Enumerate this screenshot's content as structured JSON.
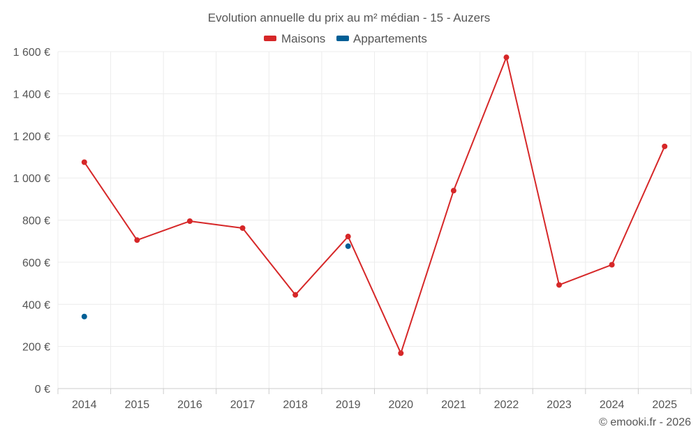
{
  "chart_data": {
    "type": "line",
    "title": "Evolution annuelle du prix au m² médian - 15 - Auzers",
    "xlabel": "",
    "ylabel": "",
    "categories": [
      "2014",
      "2015",
      "2016",
      "2017",
      "2018",
      "2019",
      "2020",
      "2021",
      "2022",
      "2023",
      "2024",
      "2025"
    ],
    "ylim": [
      0,
      1600
    ],
    "yticks": [
      0,
      200,
      400,
      600,
      800,
      1000,
      1200,
      1400,
      1600
    ],
    "ytick_labels": [
      "0 €",
      "200 €",
      "400 €",
      "600 €",
      "800 €",
      "1 000 €",
      "1 200 €",
      "1 400 €",
      "1 600 €"
    ],
    "grid": true,
    "legend_position": "top-center",
    "series": [
      {
        "name": "Maisons",
        "color": "#d62728",
        "values": [
          1075,
          705,
          795,
          762,
          445,
          722,
          168,
          940,
          1573,
          492,
          588,
          1150
        ]
      },
      {
        "name": "Appartements",
        "color": "#005f96",
        "values": [
          342,
          null,
          null,
          null,
          null,
          676,
          null,
          null,
          null,
          null,
          null,
          null
        ]
      }
    ],
    "credit": "© emooki.fr - 2026"
  }
}
